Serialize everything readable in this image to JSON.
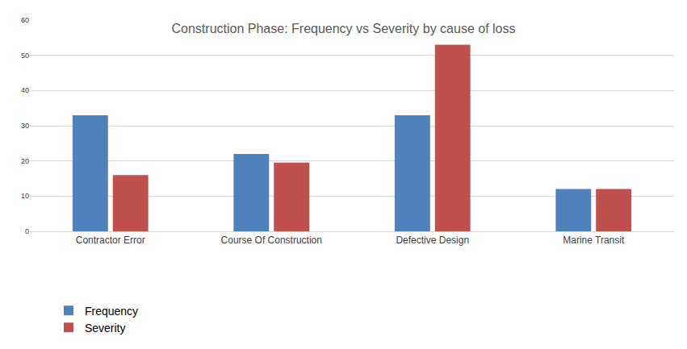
{
  "chart_data": {
    "type": "bar",
    "title": "Construction Phase: Frequency vs Severity by cause of loss",
    "categories": [
      "Contractor Error",
      "Course Of Construction",
      "Defective Design",
      "Marine Transit"
    ],
    "series": [
      {
        "name": "Frequency",
        "color": "#4f81bd",
        "values": [
          33,
          22,
          33,
          12
        ]
      },
      {
        "name": "Severity",
        "color": "#c0504d",
        "values": [
          16,
          19.5,
          53,
          12
        ]
      }
    ],
    "ylim": [
      0,
      60
    ],
    "yticks": [
      0,
      10,
      20,
      30,
      40,
      50,
      60
    ],
    "grid": true,
    "legend": "bottom left"
  }
}
